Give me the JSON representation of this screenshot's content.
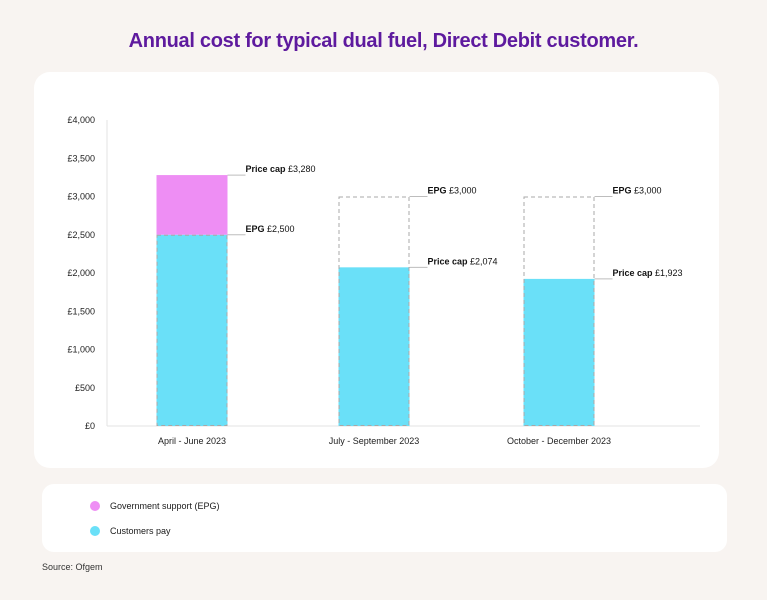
{
  "title": "Annual cost for typical dual fuel, Direct Debit customer.",
  "colors": {
    "epg": "#ee8ef4",
    "customers": "#6ae0f8",
    "title": "#5e1a9e"
  },
  "legend": [
    {
      "label": "Government support (EPG)",
      "color": "#ee8ef4"
    },
    {
      "label": "Customers pay",
      "color": "#6ae0f8"
    }
  ],
  "source": "Source: Ofgem",
  "chart_data": {
    "type": "bar",
    "stacked": true,
    "title": "Annual cost for typical dual fuel, Direct Debit customer.",
    "xlabel": "",
    "ylabel": "",
    "ylim": [
      0,
      4000
    ],
    "yticks": [
      {
        "value": 0,
        "label": "£0"
      },
      {
        "value": 500,
        "label": "£500"
      },
      {
        "value": 1000,
        "label": "£1,000"
      },
      {
        "value": 1500,
        "label": "£1,500"
      },
      {
        "value": 2000,
        "label": "£2,000"
      },
      {
        "value": 2500,
        "label": "£2,500"
      },
      {
        "value": 3000,
        "label": "£3,000"
      },
      {
        "value": 3500,
        "label": "£3,500"
      },
      {
        "value": 4000,
        "label": "£4,000"
      }
    ],
    "categories": [
      "April - June 2023",
      "July - September 2023",
      "October - December 2023"
    ],
    "series": [
      {
        "name": "Customers pay",
        "values": [
          2500,
          2074,
          1923
        ]
      },
      {
        "name": "Government support (EPG)",
        "values": [
          780,
          0,
          0
        ]
      }
    ],
    "dashed_outline_values": [
      2500,
      3000,
      3000
    ],
    "annotations": [
      [
        {
          "value": 3280,
          "bold": "Price cap",
          "text": "£3,280"
        },
        {
          "value": 2500,
          "bold": "EPG",
          "text": "£2,500"
        }
      ],
      [
        {
          "value": 3000,
          "bold": "EPG",
          "text": "£3,000"
        },
        {
          "value": 2074,
          "bold": "Price cap",
          "text": "£2,074"
        }
      ],
      [
        {
          "value": 3000,
          "bold": "EPG",
          "text": "£3,000"
        },
        {
          "value": 1923,
          "bold": "Price cap",
          "text": "£1,923"
        }
      ]
    ]
  }
}
